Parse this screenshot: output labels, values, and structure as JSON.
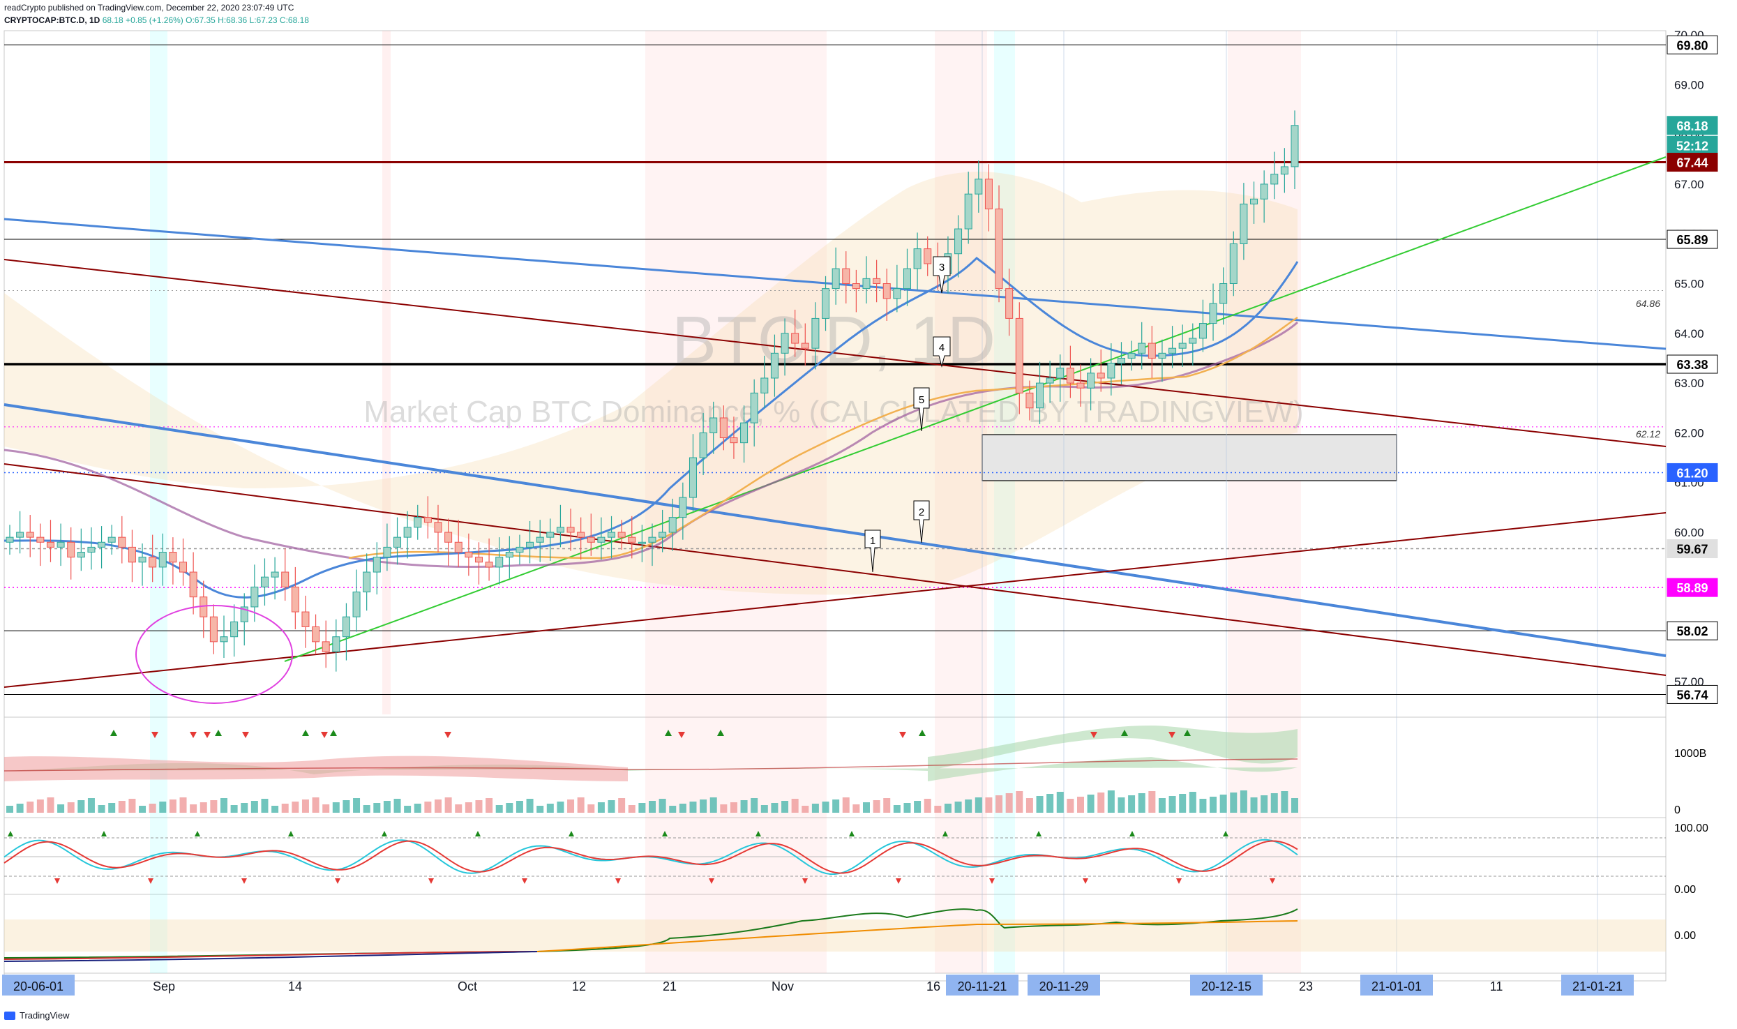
{
  "header": {
    "line1": "readCrypto published on TradingView.com, December 22, 2020 23:07:49 UTC",
    "symbol": "CRYPTOCAP:BTC.D, 1D",
    "last": "68.18",
    "change": "+0.85 (+1.26%)",
    "ohlc": "O:67.35 H:68.36 L:67.23 C:68.18"
  },
  "watermark": {
    "ticker": "BTC.D, 1D",
    "description": "Market Cap BTC Dominance, % (CALCULATED BY TRADINGVIEW)"
  },
  "chart_data": {
    "type": "candlestick",
    "symbol": "CRYPTOCAP:BTC.D",
    "interval": "1D",
    "ylim": [
      56.5,
      70.3
    ],
    "y_ticks": [
      57.0,
      58.0,
      59.0,
      60.0,
      61.0,
      62.0,
      63.0,
      64.0,
      65.0,
      66.0,
      67.0,
      68.0,
      69.0,
      70.0
    ],
    "x_ticks": [
      "20-06-01",
      "Sep",
      "14",
      "Oct",
      "12",
      "21",
      "Nov",
      "16",
      "20-11-21",
      "20-11-29",
      "20-12-15",
      "23",
      "21-01-01",
      "11",
      "21-01-21"
    ],
    "price_labels": [
      {
        "value": 69.8,
        "text": "69.80",
        "bg": "#ffffff",
        "fg": "#000000"
      },
      {
        "value": 68.18,
        "text": "68.18",
        "bg": "#26a69a",
        "fg": "#ffffff"
      },
      {
        "value": 67.78,
        "text": "52:12",
        "bg": "#26a69a",
        "fg": "#ffffff"
      },
      {
        "value": 67.44,
        "text": "67.44",
        "bg": "#8b0000",
        "fg": "#ffffff"
      },
      {
        "value": 65.89,
        "text": "65.89",
        "bg": "#ffffff",
        "fg": "#000000"
      },
      {
        "value": 63.38,
        "text": "63.38",
        "bg": "#ffffff",
        "fg": "#000000"
      },
      {
        "value": 61.2,
        "text": "61.20",
        "bg": "#2962ff",
        "fg": "#ffffff"
      },
      {
        "value": 59.67,
        "text": "59.67",
        "bg": "#e0e0e0",
        "fg": "#000000"
      },
      {
        "value": 58.89,
        "text": "58.89",
        "bg": "#ff00ff",
        "fg": "#ffffff"
      },
      {
        "value": 58.02,
        "text": "58.02",
        "bg": "#ffffff",
        "fg": "#000000"
      },
      {
        "value": 56.74,
        "text": "56.74",
        "bg": "#ffffff",
        "fg": "#000000"
      }
    ],
    "levels_inline": [
      {
        "value": 64.86,
        "text": "64.86"
      },
      {
        "value": 62.12,
        "text": "62.12"
      }
    ],
    "wave_labels": [
      "1",
      "2",
      "3",
      "4",
      "5"
    ],
    "close": [
      59.9,
      60.0,
      59.9,
      59.8,
      59.7,
      59.8,
      59.5,
      59.6,
      59.7,
      59.8,
      59.9,
      59.7,
      59.4,
      59.5,
      59.3,
      59.6,
      59.4,
      59.2,
      58.7,
      58.3,
      57.8,
      57.9,
      58.2,
      58.5,
      58.9,
      59.1,
      59.2,
      58.9,
      58.4,
      58.1,
      57.8,
      57.6,
      57.9,
      58.3,
      58.8,
      59.2,
      59.5,
      59.7,
      59.9,
      60.1,
      60.3,
      60.2,
      60.0,
      59.8,
      59.6,
      59.5,
      59.4,
      59.3,
      59.5,
      59.6,
      59.7,
      59.8,
      59.9,
      60.0,
      60.1,
      60.0,
      59.9,
      59.8,
      59.9,
      60.0,
      59.9,
      59.8,
      59.8,
      59.9,
      60.0,
      60.3,
      60.7,
      61.5,
      62.0,
      62.3,
      61.9,
      61.8,
      62.2,
      62.8,
      63.1,
      63.6,
      64.0,
      63.8,
      63.7,
      64.3,
      64.9,
      65.3,
      65.0,
      64.9,
      65.1,
      65.0,
      64.7,
      64.9,
      65.3,
      65.7,
      65.4,
      65.2,
      65.6,
      66.1,
      66.8,
      67.1,
      66.5,
      64.9,
      64.3,
      62.8,
      62.5,
      63.0,
      63.1,
      63.3,
      63.0,
      62.9,
      63.2,
      63.1,
      63.4,
      63.5,
      63.6,
      63.8,
      63.5,
      63.6,
      63.7,
      63.8,
      63.9,
      64.2,
      64.6,
      65.0,
      65.8,
      66.6,
      66.7,
      67.0,
      67.2,
      67.35,
      68.18
    ],
    "indicator_panes": [
      {
        "name": "volume",
        "ticks": [
          "1000B",
          "0"
        ]
      },
      {
        "name": "stoch_rsi",
        "ticks": [
          "100.00",
          "0.00"
        ]
      },
      {
        "name": "obv",
        "ticks": [
          "0.00"
        ]
      }
    ]
  },
  "footer": {
    "brand": "TradingView"
  }
}
